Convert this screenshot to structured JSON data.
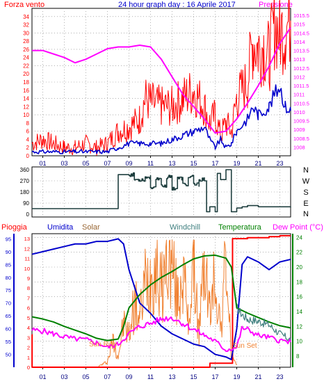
{
  "title": "24 hour graph day : 16 Aprile 2017",
  "colors": {
    "wind": "#ff0000",
    "gust": "#ff0000",
    "wind_avg": "#0000cc",
    "pressure": "#ff00ff",
    "direction": "#1f3f3f",
    "rain": "#ff0000",
    "humidity": "#0000cc",
    "solar": "#f08030",
    "windchill": "#3f7f7f",
    "temperature": "#008000",
    "dewpoint": "#ff00ff",
    "label_brown": "#996633"
  },
  "x_ticks": [
    "01",
    "03",
    "05",
    "07",
    "09",
    "11",
    "13",
    "15",
    "17",
    "19",
    "21",
    "23"
  ],
  "chart_data": [
    {
      "type": "line",
      "name": "wind",
      "left_label": "Forza vento",
      "right_label": "Pressione",
      "left_ylim": [
        0,
        36
      ],
      "left_ticks": [
        0,
        2,
        4,
        6,
        8,
        10,
        12,
        14,
        16,
        18,
        20,
        22,
        24,
        26,
        28,
        30,
        32,
        34
      ],
      "right_ylim": [
        1007.5,
        1015.9
      ],
      "right_ticks": [
        1008,
        1008.5,
        1009,
        1009.5,
        1010,
        1010.5,
        1011,
        1011.5,
        1012,
        1012.5,
        1013,
        1013.5,
        1014,
        1014.5,
        1015,
        1015.5
      ],
      "series": [
        {
          "key": "gust",
          "x": [
            0,
            1,
            2,
            3,
            4,
            5,
            6,
            7,
            8,
            9,
            10,
            10.5,
            11,
            12,
            13,
            14,
            15,
            16,
            16.5,
            17,
            17.5,
            18,
            18.5,
            19,
            20,
            20.5,
            21,
            21.5,
            22,
            22.5,
            23,
            23.5,
            24
          ],
          "values": [
            3,
            4,
            3,
            2,
            2,
            3,
            2,
            3,
            6,
            7,
            9,
            14,
            13,
            12,
            12,
            14,
            16,
            12,
            8,
            10,
            5,
            8,
            6,
            14,
            18,
            28,
            26,
            27,
            24,
            32,
            30,
            31,
            33
          ]
        },
        {
          "key": "wind_avg",
          "x": [
            0,
            1,
            2,
            3,
            4,
            5,
            6,
            7,
            8,
            9,
            10,
            11,
            12,
            13,
            14,
            15,
            16,
            16.5,
            17,
            17.5,
            18,
            18.5,
            19,
            20,
            20.5,
            21,
            22,
            22.5,
            23,
            23.5,
            24
          ],
          "values": [
            1,
            1,
            1,
            1,
            1,
            1,
            1,
            1,
            2,
            3,
            3,
            3,
            3,
            4,
            5,
            6,
            7,
            4,
            2,
            4,
            2,
            3,
            6,
            9,
            12,
            10,
            12,
            15,
            17,
            12,
            11
          ]
        },
        {
          "key": "pressure",
          "x": [
            0,
            1,
            2,
            3,
            4,
            5,
            6,
            7,
            8,
            9,
            10,
            11,
            12,
            13,
            14,
            15,
            16,
            17,
            18,
            19,
            20,
            21,
            22,
            23,
            24
          ],
          "values": [
            1013.5,
            1013.5,
            1013.3,
            1013.1,
            1012.8,
            1013.0,
            1013.3,
            1013.6,
            1013.7,
            1013.7,
            1013.8,
            1013.7,
            1013.0,
            1012.0,
            1011.0,
            1010.3,
            1009.6,
            1008.8,
            1008.9,
            1009.6,
            1010.5,
            1011.5,
            1012.6,
            1013.9,
            1014.8
          ]
        }
      ]
    },
    {
      "type": "line",
      "name": "wind_direction",
      "ylim": [
        0,
        360
      ],
      "y_ticks": [
        0,
        90,
        180,
        270,
        360
      ],
      "right_labels": [
        "N",
        "W",
        "S",
        "E",
        "N"
      ],
      "x": [
        0,
        2,
        4,
        6,
        7.9,
        8,
        9,
        9.5,
        10,
        10.5,
        11,
        11.5,
        12,
        12.5,
        13,
        13.5,
        14,
        14.5,
        15,
        15.5,
        16,
        16.2,
        16.5,
        17,
        17.2,
        17.5,
        18,
        18.5,
        19,
        19.5,
        20,
        21,
        22,
        23,
        24
      ],
      "values": [
        45,
        45,
        45,
        45,
        45,
        320,
        320,
        280,
        280,
        300,
        220,
        280,
        230,
        300,
        210,
        290,
        240,
        300,
        240,
        280,
        270,
        20,
        60,
        20,
        330,
        280,
        360,
        20,
        50,
        60,
        70,
        60,
        60,
        60,
        55
      ]
    },
    {
      "type": "line",
      "name": "weather",
      "labels": [
        "Pioggia",
        "Umidita",
        "Solar",
        "Windchill",
        "Temperatura",
        "Dew Point (°C)"
      ],
      "annotations": [
        "Sun Rise",
        "Sun Set"
      ],
      "left_rain_ticks": [
        0,
        1,
        2,
        3,
        4,
        5,
        6,
        7,
        8,
        9,
        10,
        11,
        12,
        13
      ],
      "left_rain_ylim": [
        0,
        13.5
      ],
      "left_hum_ticks": [
        50,
        55,
        60,
        65,
        70,
        75,
        80,
        85,
        90,
        95
      ],
      "left_hum_ylim": [
        45,
        97
      ],
      "right_ticks": [
        8,
        10,
        12,
        14,
        16,
        18,
        20,
        22,
        24
      ],
      "right_ylim": [
        6.5,
        24.5
      ],
      "series": [
        {
          "key": "rain",
          "x": [
            0,
            0.01,
            0.2,
            0.21,
            16.5,
            16.51,
            18.6,
            18.61,
            19.5,
            20,
            21,
            22,
            23,
            24
          ],
          "values": [
            3.3,
            0,
            0,
            0,
            0,
            0.4,
            0.4,
            13,
            13,
            13.1,
            13.1,
            13.2,
            13.3,
            13.3
          ]
        },
        {
          "key": "humidity",
          "x": [
            0,
            1,
            2,
            3,
            4,
            5,
            6,
            7,
            8,
            8.5,
            9,
            10,
            11,
            12,
            13,
            14,
            15,
            16,
            17,
            18,
            18.5,
            19,
            19.5,
            20,
            21,
            22,
            23,
            24
          ],
          "values": [
            89,
            90,
            91,
            92,
            93,
            93,
            94,
            94,
            95,
            93,
            83,
            70,
            66,
            61,
            58,
            56,
            54,
            53,
            50,
            49,
            48,
            60,
            85,
            88,
            86,
            83,
            86,
            87
          ]
        },
        {
          "key": "temperature",
          "x": [
            0,
            1,
            2,
            3,
            4,
            5,
            6,
            7,
            8,
            8.5,
            9,
            10,
            11,
            12,
            13,
            14,
            15,
            16,
            17,
            18,
            18.5,
            19,
            20,
            21,
            22,
            23,
            24
          ],
          "values": [
            13.3,
            13,
            12.6,
            12,
            11.5,
            11,
            10.4,
            10.1,
            10.3,
            12,
            14.5,
            16.3,
            17.6,
            18.6,
            19.4,
            20.3,
            21.1,
            21.5,
            21.6,
            21.2,
            20,
            14.5,
            13.8,
            13.2,
            12.6,
            12.1,
            11.8
          ]
        },
        {
          "key": "dewpoint",
          "x": [
            0,
            1,
            2,
            3,
            4,
            5,
            6,
            7,
            8,
            9,
            10,
            11,
            12,
            13,
            14,
            15,
            16,
            17,
            18,
            19,
            19.5,
            20,
            21,
            22,
            23,
            24
          ],
          "values": [
            11.5,
            11.4,
            11,
            10.6,
            10.3,
            10.2,
            9.8,
            9.2,
            9.6,
            11,
            12,
            12.4,
            13,
            13.2,
            12.4,
            11.6,
            10.8,
            10,
            8.8,
            9.2,
            11.8,
            11.6,
            10.8,
            10.5,
            10.1,
            9.9
          ]
        },
        {
          "key": "windchill",
          "x": [
            19,
            19.5,
            20,
            21,
            22,
            23,
            24
          ],
          "values": [
            14.5,
            13.6,
            13,
            12.7,
            12.2,
            11,
            10.2
          ]
        },
        {
          "key": "solar",
          "x": [
            6.2,
            7,
            7.5,
            8,
            8.5,
            9,
            9.5,
            10,
            10.5,
            11,
            11.5,
            12,
            12.5,
            13,
            13.5,
            14,
            14.5,
            15,
            15.5,
            16,
            16.5,
            17,
            17.5,
            18,
            18.5,
            19
          ],
          "values": [
            1,
            5,
            25,
            10,
            40,
            30,
            60,
            45,
            80,
            85,
            95,
            70,
            100,
            95,
            60,
            90,
            40,
            98,
            30,
            99,
            50,
            85,
            35,
            99,
            10,
            1
          ]
        }
      ]
    }
  ]
}
